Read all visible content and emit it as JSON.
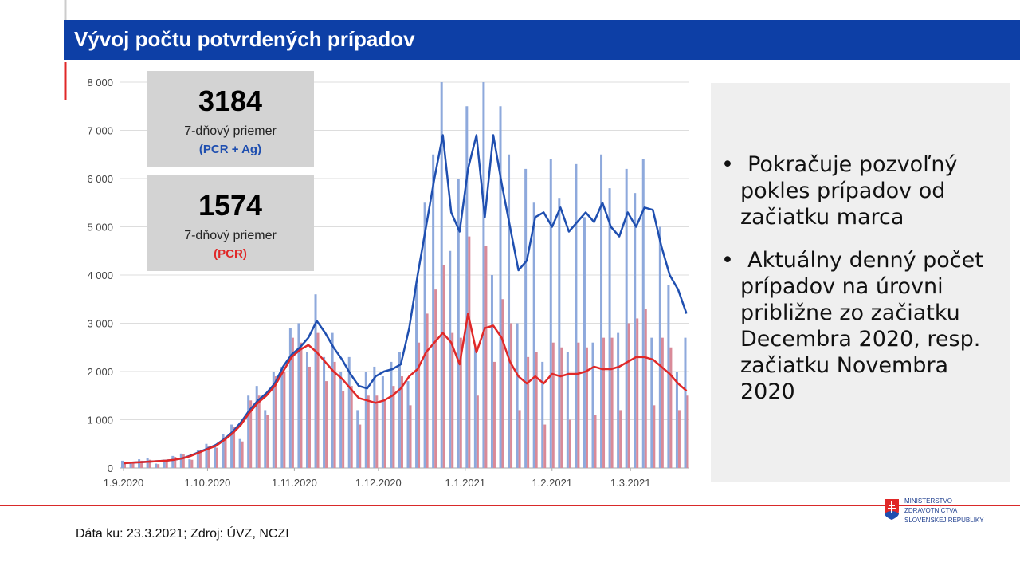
{
  "slide": {
    "title": "Vývoj počtu potvrdených prípadov",
    "bullets": [
      "Pokračuje pozvoľný pokles prípadov od začiatku marca",
      "Aktuálny denný počet prípadov na úrovni približne zo začiatku Decembra 2020, resp. začiatku Novembra 2020"
    ],
    "footer": "Dáta ku: 23.3.2021; Zdroj: ÚVZ, NCZI",
    "logo": [
      "MINISTERSTVO",
      "ZDRAVOTNÍCTVA",
      "SLOVENSKEJ REPUBLIKY"
    ]
  },
  "chart_data": {
    "type": "bar-line",
    "x": [
      "1.9.2020",
      "4.9.2020",
      "7.9.2020",
      "10.9.2020",
      "13.9.2020",
      "16.9.2020",
      "19.9.2020",
      "22.9.2020",
      "25.9.2020",
      "28.9.2020",
      "1.10.2020",
      "4.10.2020",
      "7.10.2020",
      "10.10.2020",
      "13.10.2020",
      "16.10.2020",
      "19.10.2020",
      "22.10.2020",
      "25.10.2020",
      "28.10.2020",
      "31.10.2020",
      "3.11.2020",
      "6.11.2020",
      "9.11.2020",
      "12.11.2020",
      "15.11.2020",
      "18.11.2020",
      "21.11.2020",
      "24.11.2020",
      "27.11.2020",
      "30.11.2020",
      "3.12.2020",
      "6.12.2020",
      "9.12.2020",
      "12.12.2020",
      "15.12.2020",
      "18.12.2020",
      "21.12.2020",
      "24.12.2020",
      "27.12.2020",
      "30.12.2020",
      "2.1.2021",
      "5.1.2021",
      "8.1.2021",
      "11.1.2021",
      "14.1.2021",
      "17.1.2021",
      "20.1.2021",
      "23.1.2021",
      "26.1.2021",
      "29.1.2021",
      "1.2.2021",
      "4.2.2021",
      "7.2.2021",
      "10.2.2021",
      "13.2.2021",
      "16.2.2021",
      "19.2.2021",
      "22.2.2021",
      "25.2.2021",
      "28.2.2021",
      "3.3.2021",
      "6.3.2021",
      "9.3.2021",
      "12.3.2021",
      "15.3.2021",
      "18.3.2021",
      "21.3.2021"
    ],
    "xlim": [
      "1.9.2020",
      "22.3.2021"
    ],
    "xticks": [
      "1.9.2020",
      "1.10.2020",
      "1.11.2020",
      "1.12.2020",
      "1.1.2021",
      "1.2.2021",
      "1.3.2021"
    ],
    "ylim": [
      0,
      8000
    ],
    "yticks": [
      0,
      {
        "value": 1000,
        "label": "1 000"
      },
      {
        "value": 2000,
        "label": "2 000"
      },
      {
        "value": 3000,
        "label": "3 000"
      },
      {
        "value": 4000,
        "label": "4 000"
      },
      {
        "value": 5000,
        "label": "5 000"
      },
      {
        "value": 6000,
        "label": "6 000"
      },
      {
        "value": 7000,
        "label": "7 000"
      },
      {
        "value": 8000,
        "label": "8 000"
      }
    ],
    "grid": true,
    "series": [
      {
        "name": "(PCR + Ag)",
        "color": "#1f4fb0",
        "bar_color": "#8ea9dc",
        "latest_average": 3184,
        "caption": "7-dňový priemer",
        "values": [
          150,
          120,
          180,
          200,
          90,
          170,
          250,
          300,
          180,
          380,
          500,
          450,
          700,
          900,
          600,
          1500,
          1700,
          1200,
          2000,
          2100,
          2900,
          3000,
          2400,
          3600,
          2300,
          2800,
          2000,
          2300,
          1200,
          2000,
          2100,
          1900,
          2200,
          2400,
          1800,
          3800,
          5500,
          6500,
          8000,
          4500,
          6000,
          7500,
          2500,
          8000,
          4000,
          7500,
          6500,
          3000,
          6200,
          5500,
          2200,
          6400,
          5600,
          2400,
          6300,
          5200,
          2600,
          6500,
          5800,
          2800,
          6200,
          5700,
          6400,
          2700,
          5000,
          3800,
          2000,
          2700
        ],
        "average": [
          100,
          110,
          120,
          130,
          140,
          150,
          170,
          200,
          260,
          330,
          400,
          480,
          600,
          750,
          950,
          1200,
          1400,
          1550,
          1750,
          2100,
          2350,
          2500,
          2700,
          3050,
          2800,
          2500,
          2250,
          1950,
          1700,
          1650,
          1900,
          2000,
          2050,
          2150,
          2900,
          4000,
          5000,
          6000,
          6900,
          5300,
          4900,
          6200,
          6900,
          5200,
          6900,
          5900,
          5000,
          4100,
          4300,
          5200,
          5300,
          5000,
          5400,
          4900,
          5100,
          5300,
          5100,
          5500,
          5000,
          4800,
          5300,
          5000,
          5400,
          5350,
          4600,
          4000,
          3700,
          3200
        ]
      },
      {
        "name": "(PCR)",
        "color": "#e02828",
        "bar_color": "#d98a98",
        "latest_average": 1574,
        "caption": "7-dňový priemer",
        "values": [
          130,
          100,
          150,
          170,
          80,
          150,
          230,
          280,
          170,
          350,
          450,
          420,
          650,
          850,
          550,
          1400,
          1500,
          1100,
          1900,
          2000,
          2700,
          2600,
          2100,
          2800,
          1800,
          2200,
          1600,
          1700,
          900,
          1500,
          1500,
          1400,
          1700,
          1900,
          1300,
          2600,
          3200,
          3700,
          4200,
          2800,
          2700,
          4800,
          1500,
          4600,
          2200,
          3500,
          3000,
          1200,
          2300,
          2400,
          900,
          2600,
          2500,
          1000,
          2600,
          2500,
          1100,
          2700,
          2700,
          1200,
          3000,
          3100,
          3300,
          1300,
          2700,
          2500,
          1200,
          1500
        ],
        "average": [
          100,
          110,
          120,
          130,
          140,
          150,
          170,
          200,
          250,
          320,
          390,
          460,
          580,
          720,
          900,
          1150,
          1350,
          1500,
          1700,
          2000,
          2300,
          2450,
          2550,
          2400,
          2200,
          2000,
          1850,
          1650,
          1450,
          1400,
          1350,
          1400,
          1500,
          1650,
          1900,
          2050,
          2400,
          2600,
          2800,
          2600,
          2150,
          3200,
          2400,
          2900,
          2950,
          2700,
          2200,
          1900,
          1750,
          1900,
          1750,
          1950,
          1900,
          1950,
          1950,
          2000,
          2100,
          2050,
          2050,
          2100,
          2200,
          2300,
          2300,
          2250,
          2100,
          1950,
          1750,
          1600
        ]
      }
    ]
  }
}
